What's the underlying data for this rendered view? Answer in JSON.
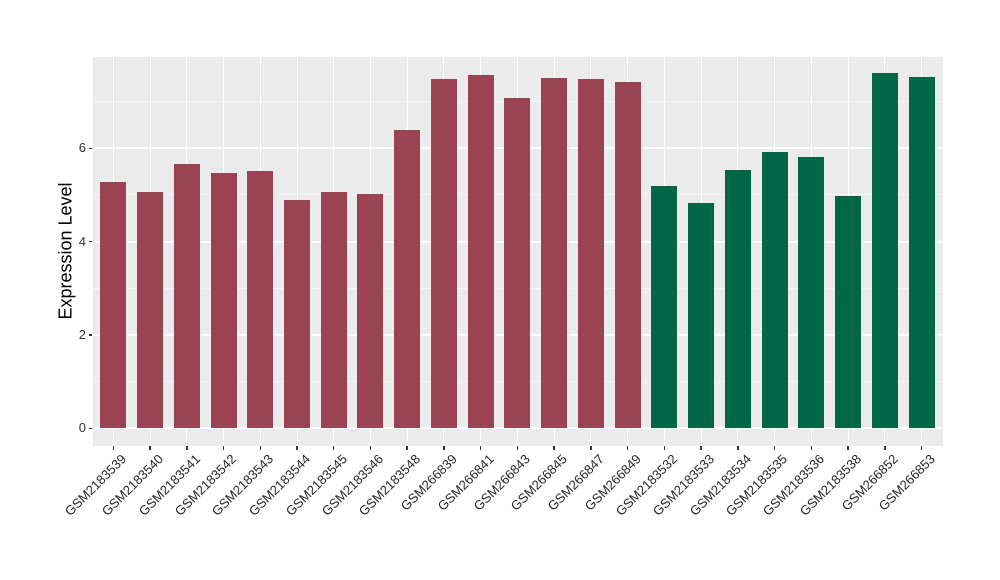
{
  "chart_data": {
    "type": "bar",
    "title": "",
    "xlabel": "",
    "ylabel": "Expression Level",
    "ylim": [
      0,
      7.96
    ],
    "yticks": [
      0,
      2,
      4,
      6
    ],
    "yticks_minor": [
      1,
      3,
      5,
      7
    ],
    "grid": "on",
    "legend": "none",
    "panel_background": "#EBEBEB",
    "gridline_color": "#FFFFFF",
    "categories": [
      "GSM2183539",
      "GSM2183540",
      "GSM2183541",
      "GSM2183542",
      "GSM2183543",
      "GSM2183544",
      "GSM2183545",
      "GSM2183546",
      "GSM2183548",
      "GSM266839",
      "GSM266841",
      "GSM266843",
      "GSM266845",
      "GSM266847",
      "GSM266849",
      "GSM2183532",
      "GSM2183533",
      "GSM2183534",
      "GSM2183535",
      "GSM2183536",
      "GSM2183538",
      "GSM266852",
      "GSM266853"
    ],
    "values": [
      5.28,
      5.07,
      5.66,
      5.47,
      5.51,
      4.89,
      5.06,
      5.01,
      6.39,
      7.48,
      7.57,
      7.07,
      7.51,
      7.49,
      7.42,
      5.19,
      4.82,
      5.53,
      5.91,
      5.82,
      4.98,
      7.61,
      7.53
    ],
    "bar_groups": [
      "maroon",
      "maroon",
      "maroon",
      "maroon",
      "maroon",
      "maroon",
      "maroon",
      "maroon",
      "maroon",
      "maroon",
      "maroon",
      "maroon",
      "maroon",
      "maroon",
      "maroon",
      "green",
      "green",
      "green",
      "green",
      "green",
      "green",
      "green",
      "green"
    ],
    "group_colors": {
      "maroon": "#9A4352",
      "green": "#026647"
    }
  }
}
